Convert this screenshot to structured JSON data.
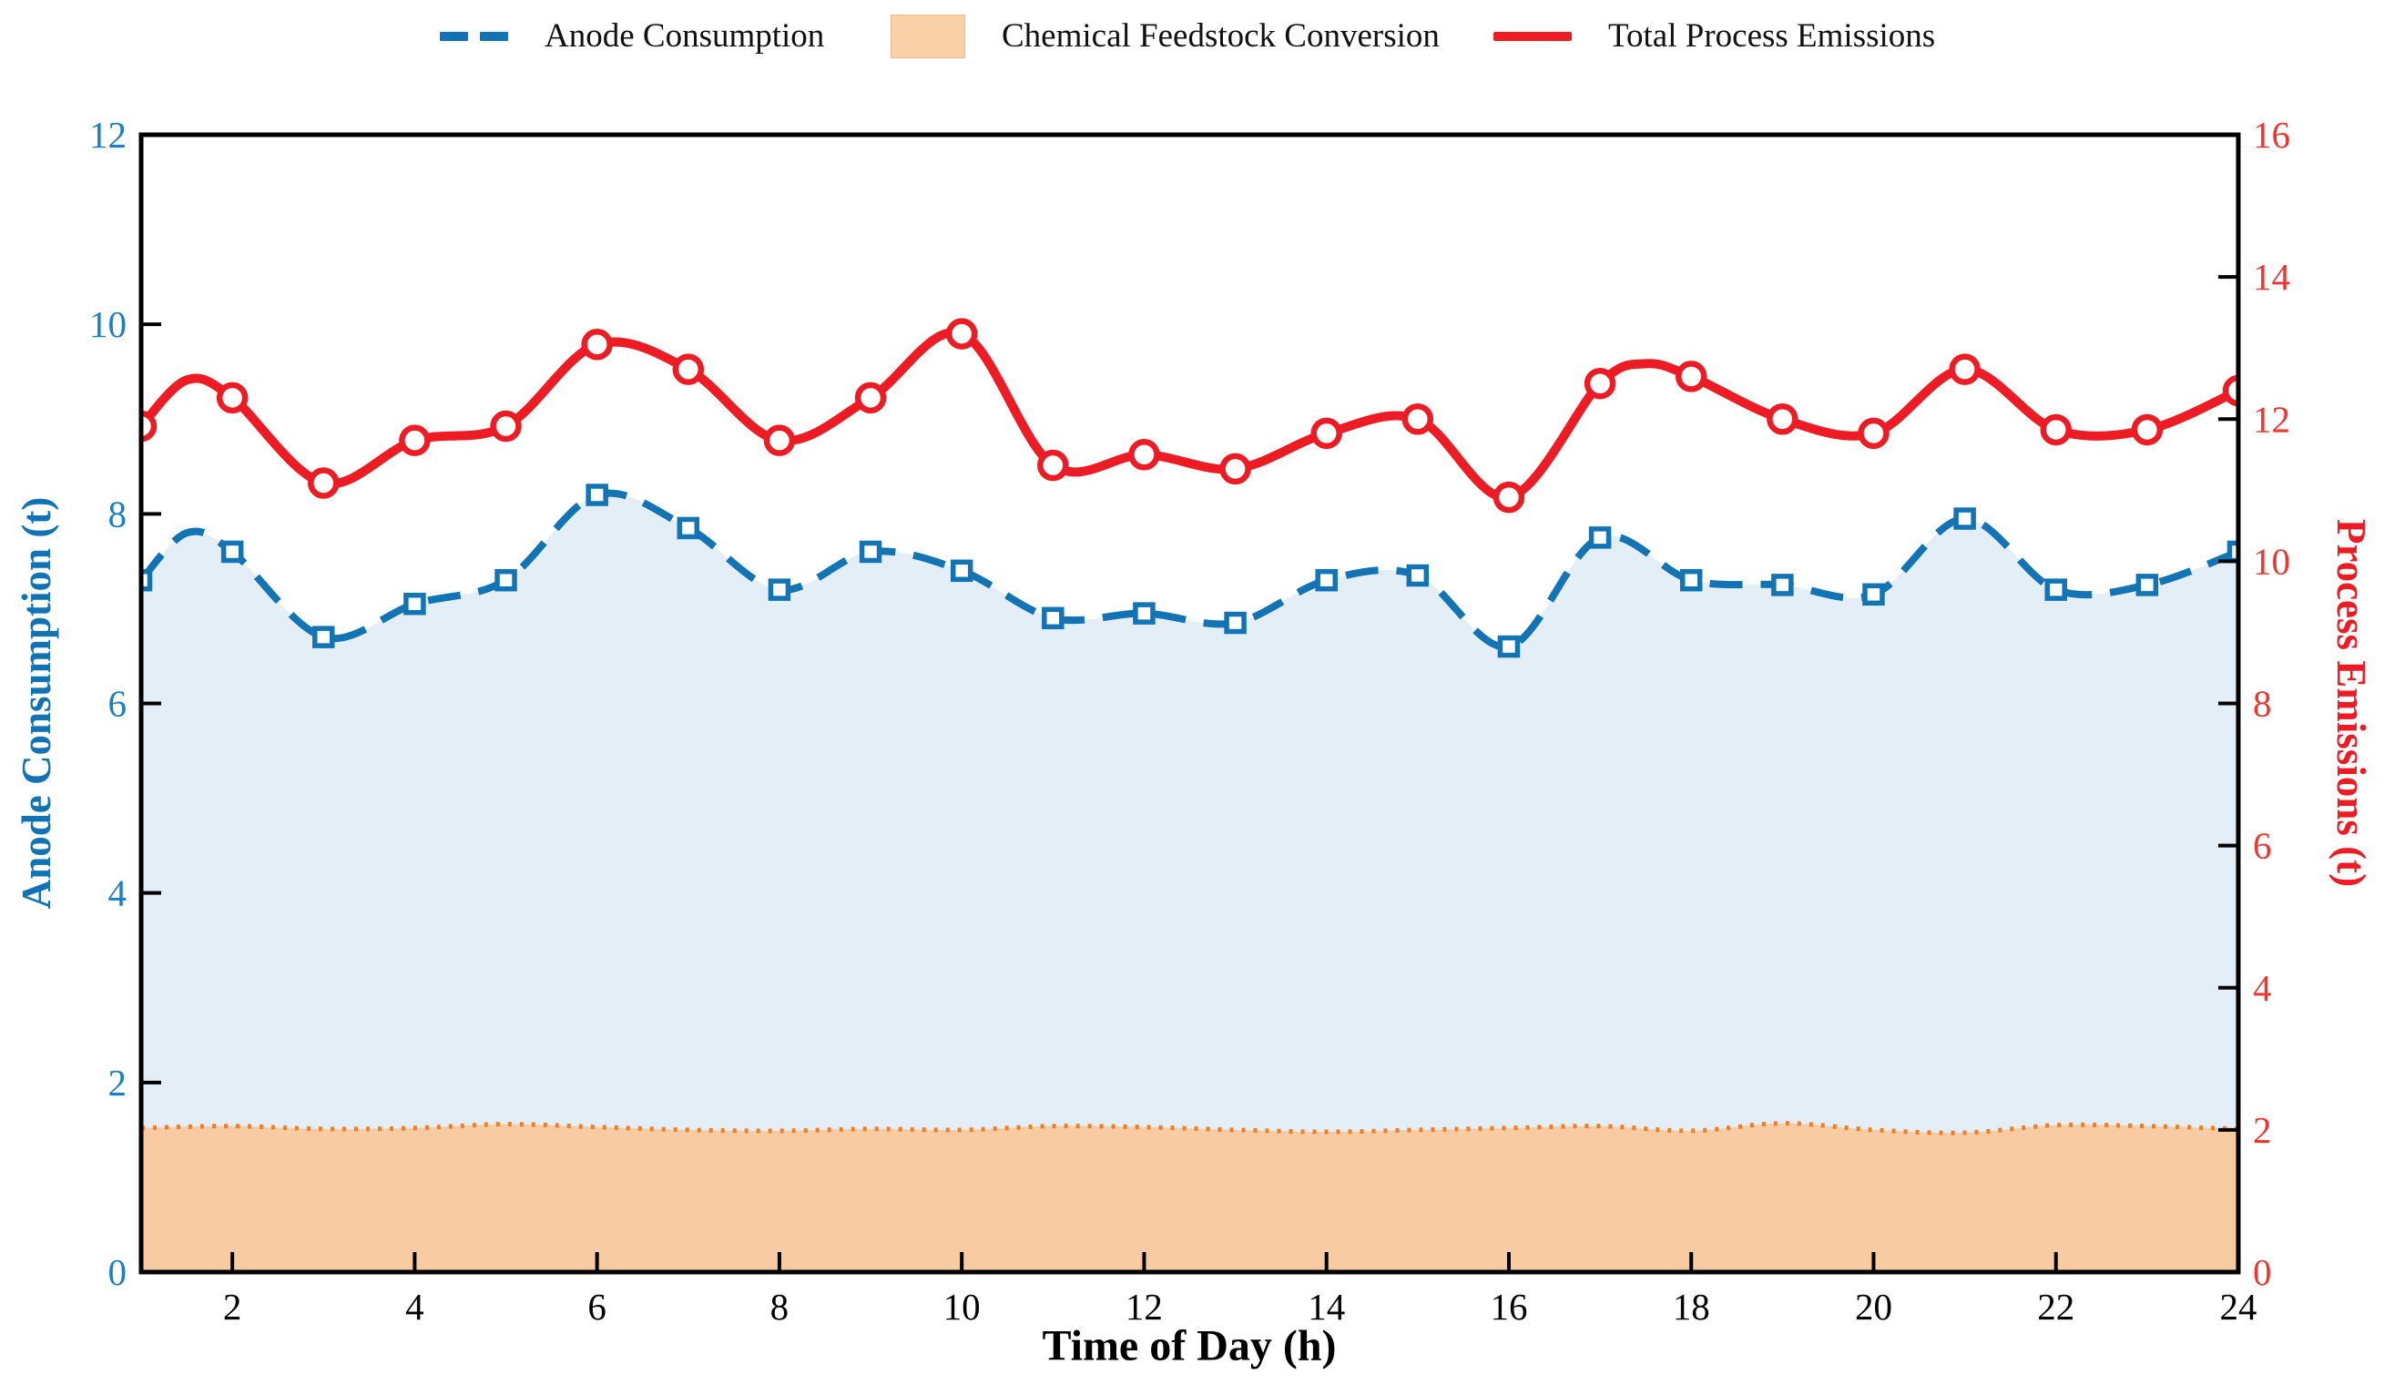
{
  "background": "#FFFFFF",
  "legend": {
    "items": [
      {
        "label": "Anode Consumption",
        "sample": "dashed-line",
        "color": "#1273B5"
      },
      {
        "label": "Chemical Feedstock Conversion",
        "sample": "patch",
        "color": "#FAD0A8"
      },
      {
        "label": "Total Process Emissions",
        "sample": "solid-line",
        "color": "#ED1C24"
      }
    ]
  },
  "axes": {
    "x_title": "Time of Day (h)",
    "y_left_title": "Anode Consumption (t)",
    "y_right_title": "Process Emissions (t)",
    "x_tick_labels": [
      2,
      4,
      6,
      8,
      10,
      12,
      14,
      16,
      18,
      20,
      22,
      24
    ],
    "y_left_tick_labels": [
      0,
      2,
      4,
      6,
      8,
      10,
      12
    ],
    "y_right_tick_labels": [
      0,
      2,
      4,
      6,
      8,
      10,
      12,
      14,
      16
    ],
    "x_tick_color": "#000000",
    "y_left_tick_color": "#1B7FC6",
    "y_right_tick_color": "#EF3530"
  },
  "chart_data": {
    "type": "line",
    "title": "",
    "xlabel": "Time of Day (h)",
    "ylabel_left": "Anode Consumption (t)",
    "ylabel_right": "Process Emissions (t)",
    "x_range": [
      1,
      24
    ],
    "y_left_range": [
      0,
      12
    ],
    "y_right_range": [
      0,
      16
    ],
    "grid": false,
    "legend_position": "top-center",
    "x": [
      1,
      2,
      3,
      4,
      5,
      6,
      7,
      8,
      9,
      10,
      11,
      12,
      13,
      14,
      15,
      16,
      17,
      18,
      19,
      20,
      21,
      22,
      23,
      24
    ],
    "series": [
      {
        "name": "Anode Consumption",
        "axis": "left",
        "style": "dashed",
        "marker": "square",
        "color": "#1273B5",
        "area_fill": "#E4EEF7",
        "values": [
          7.3,
          7.6,
          6.7,
          7.05,
          7.3,
          8.2,
          7.85,
          7.2,
          7.6,
          7.4,
          6.9,
          6.95,
          6.85,
          7.3,
          7.35,
          6.6,
          7.75,
          7.3,
          7.25,
          7.15,
          7.95,
          7.2,
          7.25,
          7.6
        ],
        "extra_curve_points": [
          [
            1.5,
            7.8
          ]
        ]
      },
      {
        "name": "Chemical Feedstock Conversion",
        "axis": "left",
        "style": "dotted",
        "marker": "none",
        "color": "#F07E26",
        "area_fill": "#F8CBA2",
        "values": [
          1.52,
          1.54,
          1.51,
          1.52,
          1.56,
          1.53,
          1.5,
          1.49,
          1.51,
          1.5,
          1.54,
          1.53,
          1.5,
          1.48,
          1.5,
          1.52,
          1.54,
          1.49,
          1.57,
          1.5,
          1.47,
          1.55,
          1.54,
          1.51
        ],
        "extra_curve_points": []
      },
      {
        "name": "Total Process Emissions",
        "axis": "right",
        "style": "solid",
        "marker": "circle",
        "color": "#ED1C24",
        "area_fill": null,
        "values": [
          11.9,
          12.3,
          11.1,
          11.7,
          11.9,
          13.05,
          12.7,
          11.7,
          12.3,
          13.2,
          11.35,
          11.5,
          11.3,
          11.8,
          12.0,
          10.9,
          12.5,
          12.6,
          12.0,
          11.8,
          12.7,
          11.85,
          11.85,
          12.4
        ],
        "extra_curve_points": [
          [
            1.5,
            12.55
          ],
          [
            17.5,
            12.78
          ]
        ]
      }
    ]
  }
}
